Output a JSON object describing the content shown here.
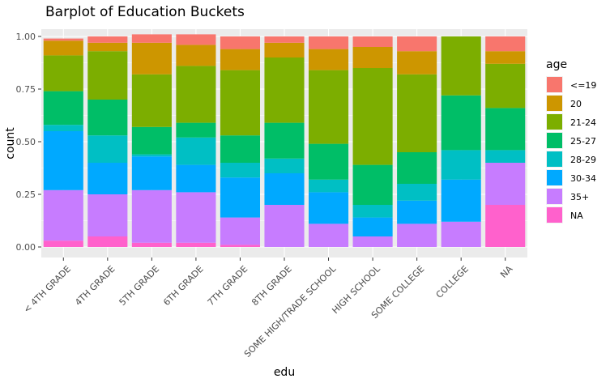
{
  "chart_data": {
    "type": "bar",
    "stacked": true,
    "title": "Barplot of Education Buckets",
    "xlabel": "edu",
    "ylabel": "count",
    "ylim": [
      0,
      1
    ],
    "yticks": [
      "0.00",
      "0.25",
      "0.50",
      "0.75",
      "1.00"
    ],
    "ytick_values": [
      0,
      0.25,
      0.5,
      0.75,
      1.0
    ],
    "grid": true,
    "legend_position": "right",
    "legend_title": "age",
    "categories": [
      "< 4TH GRADE",
      "4TH GRADE",
      "5TH GRADE",
      "6TH GRADE",
      "7TH GRADE",
      "8TH GRADE",
      "SOME HIGH/TRADE SCHOOL",
      "HIGH SCHOOL",
      "SOME COLLEGE",
      "COLLEGE",
      "NA"
    ],
    "series": [
      {
        "name": "<=19",
        "color": "#F8766D",
        "values": [
          0.01,
          0.03,
          0.04,
          0.05,
          0.06,
          0.03,
          0.06,
          0.05,
          0.07,
          0.0,
          0.07
        ]
      },
      {
        "name": "20",
        "color": "#CD9600",
        "values": [
          0.07,
          0.04,
          0.15,
          0.1,
          0.1,
          0.07,
          0.1,
          0.1,
          0.11,
          0.0,
          0.06
        ]
      },
      {
        "name": "21-24",
        "color": "#7CAE00",
        "values": [
          0.17,
          0.23,
          0.25,
          0.27,
          0.31,
          0.31,
          0.35,
          0.46,
          0.37,
          0.28,
          0.21
        ]
      },
      {
        "name": "25-27",
        "color": "#00BE67",
        "values": [
          0.16,
          0.17,
          0.13,
          0.07,
          0.13,
          0.17,
          0.17,
          0.19,
          0.15,
          0.26,
          0.2
        ]
      },
      {
        "name": "28-29",
        "color": "#00BFC4",
        "values": [
          0.03,
          0.13,
          0.01,
          0.13,
          0.07,
          0.07,
          0.06,
          0.06,
          0.08,
          0.14,
          0.06
        ]
      },
      {
        "name": "30-34",
        "color": "#00A9FF",
        "values": [
          0.28,
          0.15,
          0.16,
          0.13,
          0.19,
          0.15,
          0.15,
          0.09,
          0.11,
          0.2,
          0.0
        ]
      },
      {
        "name": "35+",
        "color": "#C77CFF",
        "values": [
          0.24,
          0.2,
          0.25,
          0.24,
          0.13,
          0.2,
          0.11,
          0.05,
          0.11,
          0.12,
          0.2
        ]
      },
      {
        "name": "NA",
        "color": "#FF61CC",
        "values": [
          0.03,
          0.05,
          0.02,
          0.02,
          0.01,
          0.0,
          0.0,
          0.0,
          0.0,
          0.0,
          0.2
        ]
      }
    ]
  }
}
